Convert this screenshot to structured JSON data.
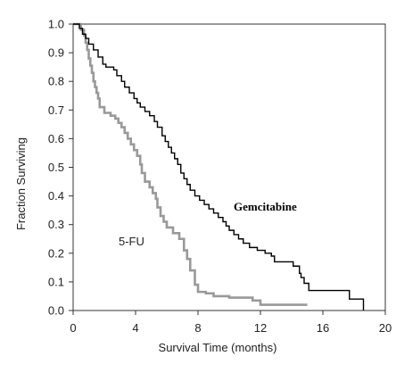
{
  "chart_data": {
    "type": "line",
    "title": "",
    "xlabel": "Survival Time (months)",
    "ylabel": "Fraction Surviving",
    "xlim": [
      0,
      20
    ],
    "ylim": [
      0,
      1.0
    ],
    "x_ticks": [
      "0",
      "4",
      "8",
      "12",
      "16",
      "20"
    ],
    "y_ticks": [
      "0.0",
      "0.1",
      "0.2",
      "0.3",
      "0.4",
      "0.5",
      "0.6",
      "0.7",
      "0.8",
      "0.9",
      "1.0"
    ],
    "grid": false,
    "step": true,
    "series": [
      {
        "name": "Gemcitabine",
        "color": "#000000",
        "points": [
          [
            0,
            1.0
          ],
          [
            0.4,
            0.985
          ],
          [
            0.6,
            0.965
          ],
          [
            0.8,
            0.95
          ],
          [
            1.0,
            0.93
          ],
          [
            1.3,
            0.91
          ],
          [
            1.6,
            0.885
          ],
          [
            1.9,
            0.86
          ],
          [
            2.1,
            0.85
          ],
          [
            2.6,
            0.84
          ],
          [
            2.8,
            0.82
          ],
          [
            3.1,
            0.8
          ],
          [
            3.3,
            0.78
          ],
          [
            3.6,
            0.76
          ],
          [
            3.9,
            0.74
          ],
          [
            4.1,
            0.725
          ],
          [
            4.3,
            0.71
          ],
          [
            4.6,
            0.695
          ],
          [
            4.9,
            0.68
          ],
          [
            5.2,
            0.66
          ],
          [
            5.4,
            0.64
          ],
          [
            5.7,
            0.61
          ],
          [
            5.9,
            0.59
          ],
          [
            6.1,
            0.57
          ],
          [
            6.3,
            0.55
          ],
          [
            6.5,
            0.53
          ],
          [
            6.7,
            0.51
          ],
          [
            6.9,
            0.48
          ],
          [
            7.1,
            0.46
          ],
          [
            7.3,
            0.44
          ],
          [
            7.5,
            0.42
          ],
          [
            7.8,
            0.4
          ],
          [
            8.1,
            0.385
          ],
          [
            8.4,
            0.37
          ],
          [
            8.7,
            0.355
          ],
          [
            9.0,
            0.34
          ],
          [
            9.3,
            0.325
          ],
          [
            9.6,
            0.31
          ],
          [
            9.8,
            0.295
          ],
          [
            10.0,
            0.28
          ],
          [
            10.3,
            0.265
          ],
          [
            10.6,
            0.25
          ],
          [
            10.9,
            0.235
          ],
          [
            11.3,
            0.22
          ],
          [
            11.8,
            0.21
          ],
          [
            12.3,
            0.2
          ],
          [
            12.7,
            0.19
          ],
          [
            12.9,
            0.17
          ],
          [
            14.1,
            0.155
          ],
          [
            14.5,
            0.13
          ],
          [
            14.6,
            0.115
          ],
          [
            14.8,
            0.095
          ],
          [
            15.1,
            0.07
          ],
          [
            17.7,
            0.04
          ],
          [
            18.6,
            0.0
          ]
        ]
      },
      {
        "name": "5-FU",
        "color": "#999999",
        "points": [
          [
            0,
            1.0
          ],
          [
            0.5,
            0.98
          ],
          [
            0.7,
            0.96
          ],
          [
            0.8,
            0.935
          ],
          [
            0.9,
            0.91
          ],
          [
            1.0,
            0.88
          ],
          [
            1.1,
            0.855
          ],
          [
            1.2,
            0.83
          ],
          [
            1.3,
            0.8
          ],
          [
            1.4,
            0.78
          ],
          [
            1.5,
            0.76
          ],
          [
            1.6,
            0.74
          ],
          [
            1.7,
            0.71
          ],
          [
            2.0,
            0.69
          ],
          [
            2.4,
            0.68
          ],
          [
            2.7,
            0.67
          ],
          [
            2.9,
            0.655
          ],
          [
            3.1,
            0.64
          ],
          [
            3.3,
            0.62
          ],
          [
            3.5,
            0.6
          ],
          [
            3.7,
            0.58
          ],
          [
            3.9,
            0.56
          ],
          [
            4.1,
            0.54
          ],
          [
            4.3,
            0.51
          ],
          [
            4.4,
            0.48
          ],
          [
            4.6,
            0.45
          ],
          [
            4.9,
            0.43
          ],
          [
            5.1,
            0.41
          ],
          [
            5.3,
            0.39
          ],
          [
            5.4,
            0.36
          ],
          [
            5.6,
            0.33
          ],
          [
            5.8,
            0.31
          ],
          [
            6.0,
            0.29
          ],
          [
            6.4,
            0.27
          ],
          [
            6.8,
            0.25
          ],
          [
            7.1,
            0.21
          ],
          [
            7.3,
            0.18
          ],
          [
            7.5,
            0.14
          ],
          [
            7.8,
            0.09
          ],
          [
            8.0,
            0.065
          ],
          [
            8.5,
            0.06
          ],
          [
            9.0,
            0.05
          ],
          [
            10.0,
            0.045
          ],
          [
            11.5,
            0.035
          ],
          [
            12.0,
            0.02
          ],
          [
            15.0,
            0.02
          ]
        ]
      }
    ]
  },
  "annotations": {
    "gemcitabine": "Gemcitabine",
    "fu": "5-FU"
  }
}
